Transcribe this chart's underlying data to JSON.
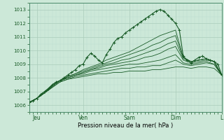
{
  "bg_color": "#cce8d8",
  "grid_color_major": "#aaccbb",
  "grid_color_minor": "#bbddd0",
  "line_color": "#1a5c28",
  "xlabel": "Pression niveau de la mer( hPa )",
  "ylim": [
    1005.5,
    1013.5
  ],
  "xlim": [
    0,
    100
  ],
  "yticks": [
    1006,
    1007,
    1008,
    1009,
    1010,
    1011,
    1012,
    1013
  ],
  "xtick_positions": [
    4,
    28,
    52,
    76,
    100
  ],
  "xtick_labels": [
    "Jeu",
    "Ven",
    "Sam",
    "Dim",
    "L"
  ],
  "series": [
    {
      "x": [
        0,
        2,
        4,
        6,
        8,
        10,
        12,
        14,
        16,
        18,
        20,
        22,
        24,
        26,
        28,
        30,
        32,
        34,
        36,
        38,
        40,
        42,
        44,
        46,
        48,
        50,
        52,
        54,
        56,
        58,
        60,
        62,
        64,
        66,
        68,
        70,
        72,
        74,
        76,
        78,
        80,
        82,
        84,
        86,
        88,
        90,
        92,
        94,
        96,
        98,
        100
      ],
      "y": [
        1006.2,
        1006.3,
        1006.5,
        1006.8,
        1007.0,
        1007.2,
        1007.5,
        1007.7,
        1007.8,
        1008.0,
        1008.2,
        1008.4,
        1008.6,
        1008.9,
        1009.0,
        1009.5,
        1009.8,
        1009.6,
        1009.3,
        1009.1,
        1009.7,
        1010.1,
        1010.6,
        1010.9,
        1011.0,
        1011.3,
        1011.5,
        1011.7,
        1011.9,
        1012.1,
        1012.3,
        1012.5,
        1012.7,
        1012.9,
        1013.0,
        1012.9,
        1012.6,
        1012.3,
        1012.0,
        1011.5,
        1009.6,
        1009.3,
        1009.1,
        1009.3,
        1009.5,
        1009.6,
        1009.4,
        1009.3,
        1009.2,
        1009.0,
        1008.2
      ],
      "marker": true
    },
    {
      "x": [
        0,
        4,
        8,
        12,
        16,
        20,
        24,
        28,
        32,
        36,
        40,
        44,
        48,
        52,
        56,
        60,
        64,
        68,
        72,
        76,
        80,
        84,
        88,
        92,
        96,
        100
      ],
      "y": [
        1006.2,
        1006.5,
        1007.0,
        1007.5,
        1007.8,
        1008.1,
        1008.3,
        1008.6,
        1008.8,
        1009.0,
        1009.3,
        1009.5,
        1009.7,
        1009.9,
        1010.2,
        1010.5,
        1010.8,
        1011.1,
        1011.3,
        1011.5,
        1009.5,
        1009.2,
        1009.3,
        1009.4,
        1009.2,
        1008.2
      ],
      "marker": false
    },
    {
      "x": [
        0,
        4,
        8,
        12,
        16,
        20,
        24,
        28,
        32,
        36,
        40,
        44,
        48,
        52,
        56,
        60,
        64,
        68,
        72,
        76,
        80,
        84,
        88,
        92,
        96,
        100
      ],
      "y": [
        1006.2,
        1006.5,
        1006.9,
        1007.4,
        1007.8,
        1008.1,
        1008.3,
        1008.5,
        1008.7,
        1008.9,
        1009.1,
        1009.3,
        1009.5,
        1009.7,
        1009.9,
        1010.1,
        1010.4,
        1010.6,
        1010.9,
        1011.1,
        1009.5,
        1009.2,
        1009.3,
        1009.4,
        1009.2,
        1008.2
      ],
      "marker": false
    },
    {
      "x": [
        0,
        4,
        8,
        12,
        16,
        20,
        24,
        28,
        32,
        36,
        40,
        44,
        48,
        52,
        56,
        60,
        64,
        68,
        72,
        76,
        80,
        84,
        88,
        92,
        96,
        100
      ],
      "y": [
        1006.2,
        1006.5,
        1006.9,
        1007.4,
        1007.8,
        1008.0,
        1008.2,
        1008.4,
        1008.6,
        1008.8,
        1009.0,
        1009.1,
        1009.3,
        1009.4,
        1009.6,
        1009.8,
        1010.0,
        1010.2,
        1010.5,
        1010.7,
        1009.4,
        1009.2,
        1009.3,
        1009.4,
        1009.2,
        1008.2
      ],
      "marker": false
    },
    {
      "x": [
        0,
        4,
        8,
        12,
        16,
        20,
        24,
        28,
        32,
        36,
        40,
        44,
        48,
        52,
        56,
        60,
        64,
        68,
        72,
        76,
        80,
        84,
        88,
        92,
        96,
        100
      ],
      "y": [
        1006.2,
        1006.5,
        1006.9,
        1007.4,
        1007.8,
        1008.0,
        1008.2,
        1008.4,
        1008.6,
        1008.7,
        1008.9,
        1009.0,
        1009.1,
        1009.2,
        1009.3,
        1009.5,
        1009.6,
        1009.8,
        1010.1,
        1010.3,
        1009.3,
        1009.1,
        1009.2,
        1009.3,
        1009.2,
        1008.2
      ],
      "marker": false
    },
    {
      "x": [
        0,
        4,
        8,
        12,
        16,
        20,
        24,
        28,
        32,
        36,
        40,
        44,
        48,
        52,
        56,
        60,
        64,
        68,
        72,
        76,
        80,
        84,
        88,
        92,
        96,
        100
      ],
      "y": [
        1006.2,
        1006.5,
        1006.9,
        1007.4,
        1007.8,
        1008.0,
        1008.2,
        1008.3,
        1008.5,
        1008.6,
        1008.7,
        1008.8,
        1008.9,
        1009.0,
        1009.0,
        1009.1,
        1009.2,
        1009.3,
        1009.5,
        1009.7,
        1009.1,
        1009.0,
        1009.1,
        1009.2,
        1009.0,
        1008.2
      ],
      "marker": false
    },
    {
      "x": [
        0,
        4,
        8,
        12,
        16,
        20,
        24,
        28,
        32,
        36,
        40,
        44,
        48,
        52,
        56,
        60,
        64,
        68,
        72,
        76,
        80,
        84,
        88,
        92,
        96,
        100
      ],
      "y": [
        1006.2,
        1006.5,
        1006.9,
        1007.3,
        1007.7,
        1007.9,
        1008.1,
        1008.2,
        1008.3,
        1008.4,
        1008.5,
        1008.6,
        1008.7,
        1008.7,
        1008.8,
        1008.8,
        1008.9,
        1008.9,
        1009.1,
        1009.3,
        1009.0,
        1008.9,
        1009.0,
        1009.1,
        1009.0,
        1008.2
      ],
      "marker": false
    },
    {
      "x": [
        0,
        4,
        8,
        12,
        16,
        20,
        24,
        28,
        32,
        36,
        40,
        44,
        48,
        52,
        56,
        60,
        64,
        68,
        72,
        76,
        80,
        84,
        88,
        92,
        96,
        100
      ],
      "y": [
        1006.2,
        1006.5,
        1006.9,
        1007.3,
        1007.7,
        1007.9,
        1008.0,
        1008.1,
        1008.2,
        1008.3,
        1008.3,
        1008.4,
        1008.4,
        1008.5,
        1008.5,
        1008.5,
        1008.6,
        1008.6,
        1008.7,
        1008.8,
        1008.8,
        1008.7,
        1008.8,
        1008.8,
        1008.7,
        1008.2
      ],
      "marker": false
    }
  ],
  "dpi": 100
}
